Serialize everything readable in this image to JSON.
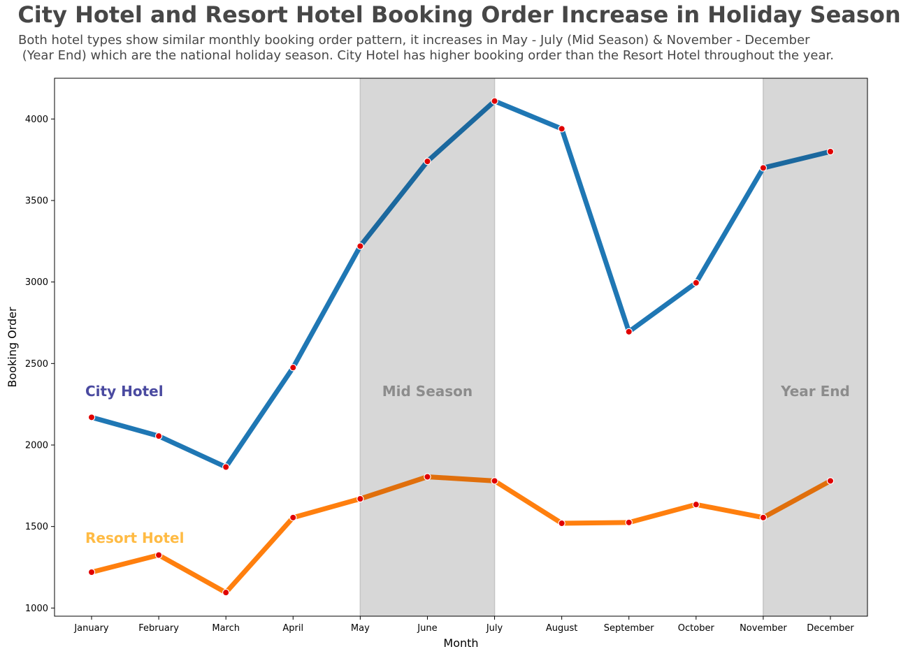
{
  "chart_data": {
    "type": "line",
    "title": "City Hotel and Resort Hotel Booking Order Increase in Holiday Season",
    "subtitle": "Both hotel types show similar monthly booking order pattern, it increases in May - July (Mid Season) & November - December\n (Year End) which are the national holiday season. City Hotel has higher booking order than the Resort Hotel throughout the year.",
    "xlabel": "Month",
    "ylabel": "Booking Order",
    "categories": [
      "January",
      "February",
      "March",
      "April",
      "May",
      "June",
      "July",
      "August",
      "September",
      "October",
      "November",
      "December"
    ],
    "ylim": [
      950,
      4250
    ],
    "yticks": [
      1000,
      1500,
      2000,
      2500,
      3000,
      3500,
      4000
    ],
    "grid": false,
    "series": [
      {
        "name": "City Hotel",
        "color": "#1f77b4",
        "label_color": "#4a4aa0",
        "values": [
          2170,
          2055,
          1865,
          2475,
          3220,
          3740,
          4110,
          3940,
          2695,
          2995,
          3700,
          3800
        ]
      },
      {
        "name": "Resort Hotel",
        "color": "#ff7f0e",
        "label_color": "#ffbb44",
        "values": [
          1220,
          1325,
          1095,
          1555,
          1670,
          1805,
          1780,
          1520,
          1525,
          1635,
          1555,
          1780
        ]
      }
    ],
    "marker_color": "#e00000",
    "shaded_regions": [
      {
        "label": "Mid Season",
        "x_start": "May",
        "x_end": "July",
        "color": "#d7d7d7",
        "label_color": "#8c8c8c",
        "label_y": 2300
      },
      {
        "label": "Year End",
        "x_start": "November",
        "x_end": "December",
        "color": "#d7d7d7",
        "label_color": "#8c8c8c",
        "label_y": 2300
      }
    ],
    "series_labels": [
      {
        "series": "City Hotel",
        "y": 2300
      },
      {
        "series": "Resort Hotel",
        "y": 1400
      }
    ]
  }
}
